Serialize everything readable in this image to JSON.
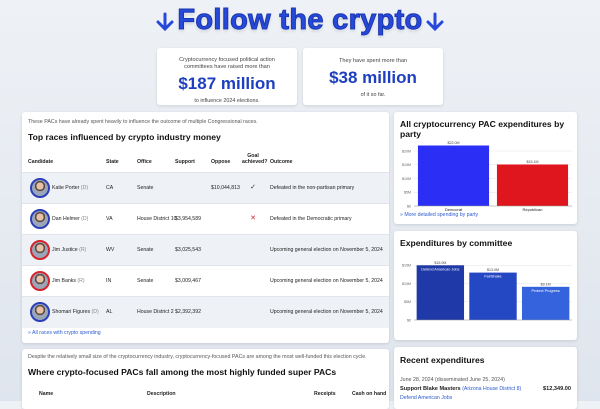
{
  "header": {
    "title": "Follow the crypto"
  },
  "stats": [
    {
      "lead": "Cryptocurrency focused political action committees have raised more than",
      "amount": "$187 million",
      "tail": "to influence 2024 elections."
    },
    {
      "lead": "They have spent more than",
      "amount": "$38 million",
      "tail": "of it so far."
    }
  ],
  "races": {
    "intro": "These PACs have already spent heavily to influence the outcome of multiple Congressional races.",
    "title": "Top races influenced by crypto industry money",
    "columns": [
      "Candidate",
      "State",
      "Office",
      "Support",
      "Oppose",
      "Goal achieved?",
      "Outcome"
    ],
    "rows": [
      {
        "name": "Katie Porter",
        "party": "(D)",
        "state": "CA",
        "office": "Senate",
        "oppose": "$10,044,813",
        "goal": "✓",
        "outcome": "Defeated in the non-partisan primary"
      },
      {
        "name": "Dan Helmer",
        "party": "(D)",
        "state": "VA",
        "office": "House District 10",
        "support": "$3,954,589",
        "goal": "✕",
        "outcome": "Defeated in the Democratic primary"
      },
      {
        "name": "Jim Justice",
        "party": "(R)",
        "state": "WV",
        "office": "Senate",
        "support": "$3,025,543",
        "outcome": "Upcoming general election on November 5, 2024"
      },
      {
        "name": "Jim Banks",
        "party": "(R)",
        "state": "IN",
        "office": "Senate",
        "support": "$3,009,467",
        "outcome": "Upcoming general election on November 5, 2024"
      },
      {
        "name": "Shomari Figures",
        "party": "(D)",
        "state": "AL",
        "office": "House District 2",
        "support": "$2,392,392",
        "outcome": "Upcoming general election on November 5, 2024"
      }
    ],
    "link": "» All races with crypto spending"
  },
  "superpacs": {
    "intro": "Despite the relatively small size of the cryptocurrency industry, cryptocurrency-focused PACs are among the most well-funded this election cycle.",
    "title": "Where crypto-focused PACs fall among the most highly funded super PACs",
    "columns": [
      "Name",
      "Description",
      "Receipts",
      "Cash on hand"
    ]
  },
  "chart_data": [
    {
      "type": "bar",
      "title": "All cryptocurrency PAC expenditures by party",
      "categories": [
        "Democrat",
        "Republican"
      ],
      "values": [
        22000000,
        15100000
      ],
      "value_labels": [
        "$22.0M",
        "$15.1M"
      ],
      "colors": [
        "#2b2ff5",
        "#e0161e"
      ],
      "category_label_position": "below",
      "ylim": [
        0,
        24000000
      ],
      "yticks": [
        {
          "value": 0,
          "label": "$0"
        },
        {
          "value": 5000000,
          "label": "$5M"
        },
        {
          "value": 10000000,
          "label": "$10M"
        },
        {
          "value": 15000000,
          "label": "$15M"
        },
        {
          "value": 20000000,
          "label": "$20M"
        }
      ],
      "grid": true,
      "link": "» More detailed spending by party"
    },
    {
      "type": "bar",
      "title": "Expenditures by committee",
      "categories": [
        "Defend American Jobs",
        "FairShake",
        "Protect Progress"
      ],
      "values": [
        15000000,
        13000000,
        9100000
      ],
      "value_labels": [
        "$15.0M",
        "$13.0M",
        "$9.1M"
      ],
      "colors": [
        "#1f3aa8",
        "#2447c4",
        "#3563de"
      ],
      "category_label_position": "inside",
      "ylim": [
        0,
        17000000
      ],
      "yticks": [
        {
          "value": 0,
          "label": "$0"
        },
        {
          "value": 5000000,
          "label": "$5M"
        },
        {
          "value": 10000000,
          "label": "$10M"
        },
        {
          "value": 15000000,
          "label": "$15M"
        }
      ],
      "grid": true
    }
  ],
  "recent": {
    "title": "Recent expenditures",
    "items": [
      {
        "date": "June 28, 2024 (disseminated June 25, 2024)",
        "action": "Support Blake Masters",
        "race": "(Arizona House District 8)",
        "amount": "$12,349.00",
        "committee": "Defend American Jobs"
      }
    ]
  }
}
